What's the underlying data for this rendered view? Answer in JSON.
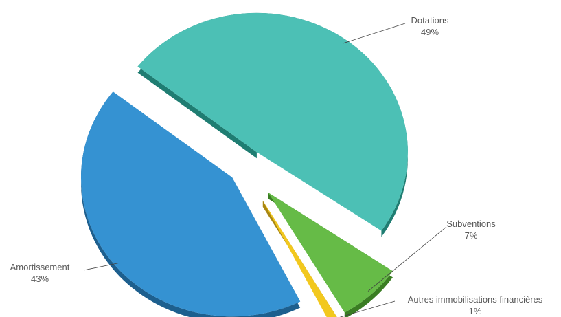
{
  "chart_data": {
    "type": "pie",
    "title": "",
    "labels": [
      "Dotations",
      "Subventions",
      "Autres immobilisations financières",
      "Amortissement"
    ],
    "values": [
      49,
      7,
      1,
      43
    ],
    "value_labels": [
      "49%",
      "7%",
      "1%",
      "43%"
    ],
    "colors": [
      "#4cc0b5",
      "#66bb47",
      "#f2c81e",
      "#3592d2"
    ],
    "side_colors": [
      "#1f7d72",
      "#3a7d23",
      "#a88612",
      "#1d5f8e"
    ],
    "exploded": true,
    "three_d": true,
    "legend": "none"
  }
}
